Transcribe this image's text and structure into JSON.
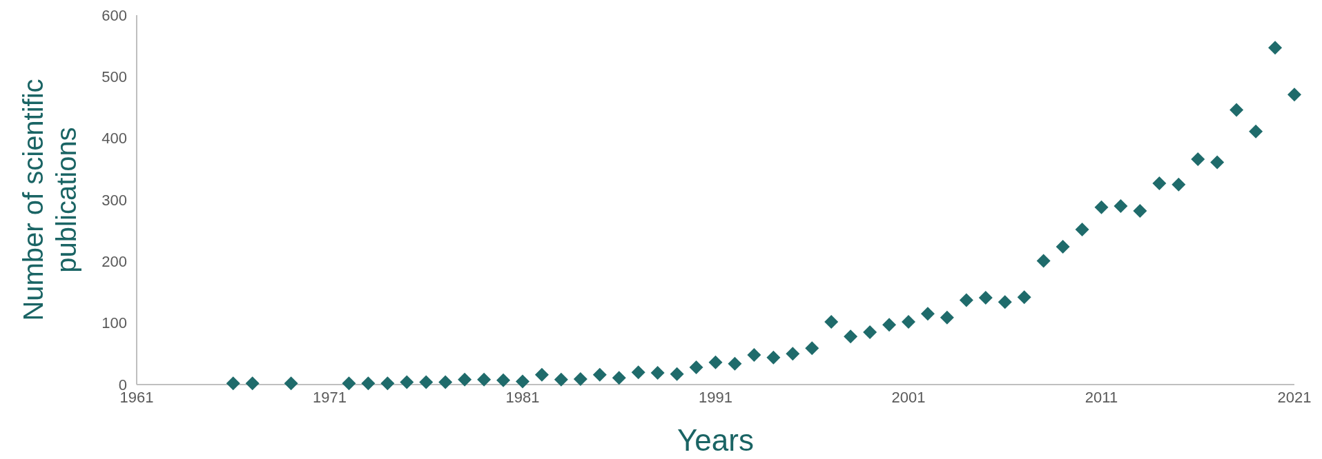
{
  "chart_data": {
    "type": "scatter",
    "xlabel": "Years",
    "ylabel": "Number of scientific publications",
    "marker": "diamond",
    "grid": false,
    "x": [
      1966,
      1967,
      1969,
      1972,
      1973,
      1974,
      1975,
      1976,
      1977,
      1978,
      1979,
      1980,
      1981,
      1982,
      1983,
      1984,
      1985,
      1986,
      1987,
      1988,
      1989,
      1990,
      1991,
      1992,
      1993,
      1994,
      1995,
      1996,
      1997,
      1998,
      1999,
      2000,
      2001,
      2002,
      2003,
      2004,
      2005,
      2006,
      2007,
      2008,
      2009,
      2010,
      2011,
      2012,
      2013,
      2014,
      2015,
      2016,
      2017,
      2018,
      2019,
      2020,
      2021
    ],
    "series": [
      {
        "color": "#1f6b6b",
        "values": [
          2,
          2,
          2,
          2,
          2,
          2,
          4,
          4,
          4,
          8,
          8,
          7,
          5,
          16,
          8,
          9,
          16,
          11,
          20,
          19,
          17,
          28,
          36,
          34,
          48,
          44,
          50,
          59,
          102,
          78,
          85,
          97,
          102,
          115,
          109,
          137,
          141,
          134,
          142,
          201,
          224,
          252,
          288,
          290,
          282,
          327,
          325,
          366,
          361,
          446,
          411,
          547,
          471
        ]
      }
    ],
    "xlim": [
      1961,
      2021
    ],
    "xticks": [
      1961,
      1971,
      1981,
      1991,
      2001,
      2011,
      2021
    ],
    "ylim": [
      0,
      600
    ],
    "yticks": [
      0,
      100,
      200,
      300,
      400,
      500,
      600
    ]
  }
}
